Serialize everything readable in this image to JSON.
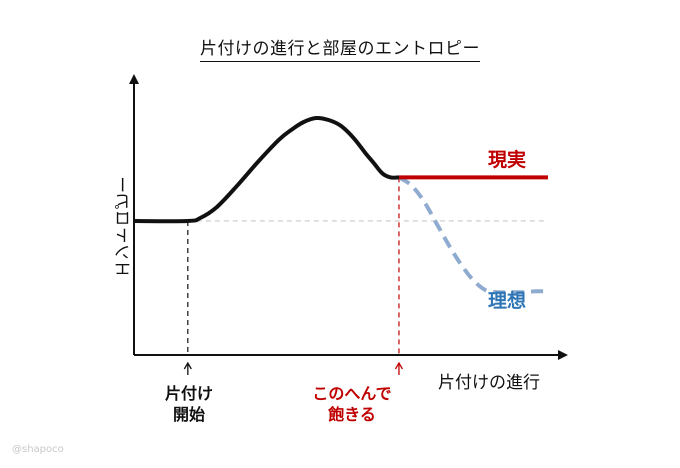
{
  "chart_data": {
    "type": "line",
    "title": "片付けの進行と部屋のエントロピー",
    "xlabel": "片付けの進行",
    "ylabel": "エントロピー",
    "x_ticks_shown": false,
    "y_ticks_shown": false,
    "grid": false,
    "xlim": [
      0,
      100
    ],
    "ylim": [
      0,
      100
    ],
    "baseline_reference": 48,
    "series": [
      {
        "name": "現実",
        "color": "#c00000",
        "style": "solid",
        "x": [
          0,
          13,
          16,
          20,
          25,
          30,
          35,
          38,
          41,
          44,
          47,
          50,
          53,
          56,
          58,
          60,
          62,
          64,
          66,
          70,
          75,
          80,
          85,
          90,
          95,
          100
        ],
        "y": [
          48,
          48,
          49.5,
          55,
          66,
          78,
          89,
          94,
          98,
          100,
          99,
          96,
          90,
          82,
          77,
          72,
          70,
          70,
          70,
          70,
          70,
          70,
          70,
          70,
          70,
          70
        ]
      },
      {
        "name": "理想",
        "color": "#8fabd0",
        "style": "dashed",
        "x": [
          64,
          67,
          70,
          73,
          76,
          79,
          82,
          85,
          88,
          91,
          94,
          97,
          100
        ],
        "y": [
          70,
          66,
          58,
          47,
          36,
          26,
          18,
          13,
          12,
          12,
          12,
          12.5,
          12.5
        ]
      }
    ],
    "annotations": [
      {
        "text_lines": [
          "片付け",
          "開始"
        ],
        "x": 13,
        "color": "#111111",
        "line_style": "dashed"
      },
      {
        "text_lines": [
          "このへんで",
          "飽きる"
        ],
        "x": 64,
        "color": "#c00000",
        "line_style": "dashed"
      }
    ],
    "colors": {
      "axis": "#111111",
      "curve_before_split": "#111111",
      "baseline_reference": "#c8c8c8"
    }
  },
  "watermark": "@shapoco"
}
